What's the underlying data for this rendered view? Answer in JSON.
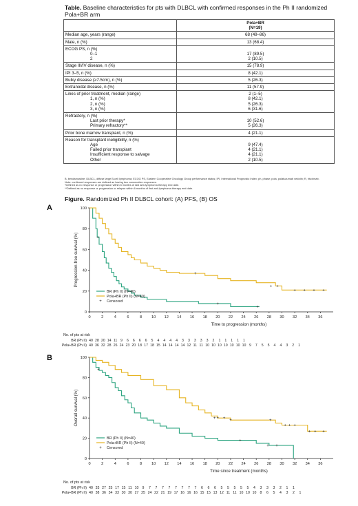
{
  "table": {
    "title_bold": "Table.",
    "title_rest": " Baseline characteristics for pts with DLBCL with confirmed responses in the Ph II randomized Pola+BR arm",
    "col_header_1": "Pola+BR",
    "col_header_2": "(N=19)",
    "rows": {
      "age": {
        "label": "Median age, years (range)",
        "value": "68 (49–86)"
      },
      "male": {
        "label": "Male, n (%)",
        "value": "13 (68.4)"
      },
      "ecog": {
        "label": "ECOG PS, n (%)",
        "sub1": "0–1",
        "sub2": "2",
        "v1": "17 (89.5)",
        "v2": "2 (10.5)"
      },
      "stage": {
        "label": "Stage III/IV disease, n (%)",
        "value": "15 (78.9)"
      },
      "ipi": {
        "label": "IPI 3–5, n (%)",
        "value": "8 (42.1)"
      },
      "bulky": {
        "label": "Bulky disease (≥7.5cm), n (%)",
        "value": "5 (26.3)"
      },
      "extranodal": {
        "label": "Extranodal disease, n (%)",
        "value": "11 (57.9)"
      },
      "lines": {
        "label": "Lines of prior treatment, median (range)",
        "sub1": "1, n (%)",
        "sub2": "2, n (%)",
        "sub3": "3, n (%)",
        "v0": "2 (1–5)",
        "v1": "8 (42.1)",
        "v2": "5 (26.3)",
        "v3": "6 (31.6)"
      },
      "refractory": {
        "label": "Refractory, n (%)",
        "sub1": "Last prior therapy*",
        "sub2": "Primary refractory**",
        "v1": "10 (52.6)",
        "v2": "5 (26.3)"
      },
      "bmt": {
        "label": "Prior bone marrow transplant, n (%)",
        "value": "4 (21.1)"
      },
      "reason": {
        "label": "Reason for transplant ineligibility, n (%)",
        "sub1": "Age",
        "sub2": "Failed prior transplant",
        "sub3": "Insufficient response to salvage",
        "sub4": "Other",
        "v1": "9 (47.4)",
        "v2": "4 (21.1)",
        "v3": "4 (21.1)",
        "v4": "2 (10.5)"
      }
    },
    "footnote_1": "B, bendamustine; DLBCL, diffuse large B-cell lymphoma; ECOG PS, Eastern Cooperative Oncology Group performance status; IPI, International Prognostic Index; ph, phase; pola, polatuzumab vedotin; R, rituximab.",
    "footnote_2": "Note: confirmed responses are defined as having two consecutive responses.",
    "footnote_3": "*Defined as no response or progression within 6 months of last anti-lymphoma therapy end date.",
    "footnote_4": "**Defined as no response or progression or relapse within 6 months of first anti-lymphoma therapy end date."
  },
  "figure": {
    "title_bold": "Figure.",
    "title_rest": " Randomized Ph II DLBCL cohort: (A) PFS, (B) OS",
    "panel_a": "A",
    "panel_b": "B"
  },
  "chart_data": [
    {
      "type": "line",
      "title": "",
      "xlabel": "Time to progression (months)",
      "ylabel": "Progression-free survival (%)",
      "xlim": [
        0,
        38
      ],
      "ylim": [
        0,
        100
      ],
      "xticks": [
        0,
        2,
        4,
        6,
        8,
        10,
        12,
        14,
        16,
        18,
        20,
        22,
        24,
        26,
        28,
        30,
        32,
        34,
        36
      ],
      "yticks": [
        0,
        20,
        40,
        60,
        80,
        100
      ],
      "colors": {
        "BR (Ph II)": "#2aa37f",
        "Pola+BR (Ph II)": "#e6b422"
      },
      "legend": [
        "BR (Ph II) (N=40)",
        "Pola+BR (Ph II) (N=40)",
        "Censored"
      ],
      "series": [
        {
          "name": "BR (Ph II)",
          "x": [
            0,
            0.5,
            1,
            1.2,
            1.5,
            2,
            2.3,
            2.6,
            3,
            3.4,
            3.8,
            4.2,
            4.6,
            5,
            5.4,
            6,
            6.5,
            7,
            8,
            9,
            10,
            12,
            14,
            16,
            17,
            20,
            22,
            26,
            26.5
          ],
          "y": [
            100,
            90,
            80,
            72,
            65,
            58,
            52,
            47,
            42,
            38,
            34,
            30,
            27,
            24,
            22,
            20,
            18,
            16,
            14,
            12,
            12,
            10,
            10,
            10,
            8,
            8,
            5,
            5,
            5
          ]
        },
        {
          "name": "Pola+BR (Ph II)",
          "x": [
            0,
            1,
            1.5,
            2,
            2.5,
            3,
            3.5,
            4,
            4.5,
            5,
            6,
            6.5,
            7,
            8,
            9,
            10,
            11,
            12,
            14,
            16,
            18,
            20,
            22,
            26,
            28,
            29,
            30,
            32,
            36,
            37
          ],
          "y": [
            100,
            95,
            90,
            85,
            80,
            75,
            70,
            66,
            62,
            58,
            55,
            52,
            50,
            47,
            44,
            42,
            40,
            38,
            37,
            37,
            35,
            32,
            30,
            28,
            28,
            25,
            21,
            21,
            21,
            21
          ]
        }
      ],
      "censored": {
        "BR (Ph II)": [
          [
            1.3,
            72
          ],
          [
            20,
            8
          ],
          [
            26.2,
            5
          ]
        ],
        "Pola+BR (Ph II)": [
          [
            16.5,
            37
          ],
          [
            28.3,
            25
          ],
          [
            29.3,
            25
          ],
          [
            32,
            21
          ],
          [
            33.5,
            21
          ],
          [
            35,
            21
          ],
          [
            36.5,
            21
          ]
        ]
      },
      "risk_table": {
        "heading": "No. of pts at risk",
        "rows": [
          {
            "name": "BR (Ph II)",
            "values": [
              "40",
              "28",
              "20",
              "14",
              "11",
              "9",
              "6",
              "6",
              "6",
              "6",
              "5",
              "4",
              "4",
              "4",
              "4",
              "3",
              "3",
              "3",
              "3",
              "3",
              "2",
              "1",
              "1",
              "1",
              "1",
              "1"
            ]
          },
          {
            "name": "Pola+BR (Ph II)",
            "values": [
              "40",
              "36",
              "32",
              "28",
              "26",
              "24",
              "23",
              "20",
              "18",
              "17",
              "18",
              "15",
              "14",
              "14",
              "14",
              "14",
              "12",
              "11",
              "11",
              "10",
              "10",
              "10",
              "10",
              "10",
              "10",
              "10",
              "9",
              "7",
              "5",
              "5",
              "4",
              "4",
              "3",
              "2",
              "1"
            ]
          }
        ]
      }
    },
    {
      "type": "line",
      "title": "",
      "xlabel": "Time since treatment (months)",
      "ylabel": "Overall survival (%)",
      "xlim": [
        0,
        38
      ],
      "ylim": [
        0,
        100
      ],
      "xticks": [
        0,
        2,
        4,
        6,
        8,
        10,
        12,
        14,
        16,
        18,
        20,
        22,
        24,
        26,
        28,
        30,
        32,
        34,
        36
      ],
      "yticks": [
        0,
        20,
        40,
        60,
        80,
        100
      ],
      "colors": {
        "BR (Ph II)": "#2aa37f",
        "Pola+BR (Ph II)": "#e6b422"
      },
      "legend": [
        "BR (Ph II) (N=40)",
        "Pola+BR (Ph II) (N=40)",
        "Censored"
      ],
      "series": [
        {
          "name": "BR (Ph II)",
          "x": [
            0,
            0.5,
            1,
            1.5,
            2,
            2.5,
            3,
            3.5,
            4,
            4.5,
            5,
            5.5,
            6,
            6.5,
            7,
            8,
            9,
            10,
            11,
            12,
            14,
            16,
            18,
            20,
            24,
            26,
            28,
            30,
            31.5,
            31.8
          ],
          "y": [
            100,
            95,
            90,
            87,
            85,
            82,
            80,
            75,
            70,
            67,
            62,
            58,
            55,
            50,
            45,
            40,
            38,
            35,
            32,
            30,
            25,
            22,
            20,
            18,
            18,
            15,
            13,
            13,
            13,
            0
          ]
        },
        {
          "name": "Pola+BR (Ph II)",
          "x": [
            0,
            1,
            2,
            3,
            4,
            5,
            6,
            8,
            10,
            12,
            14,
            15,
            16,
            17,
            18,
            19,
            20,
            22,
            26,
            28,
            29,
            30,
            32,
            34,
            36,
            37
          ],
          "y": [
            100,
            97,
            95,
            92,
            88,
            85,
            82,
            78,
            72,
            68,
            60,
            55,
            52,
            48,
            45,
            42,
            40,
            38,
            38,
            38,
            35,
            33,
            33,
            27,
            27,
            27
          ]
        }
      ],
      "censored": {
        "BR (Ph II)": [
          [
            1.4,
            88
          ],
          [
            23.5,
            18
          ],
          [
            27.8,
            13
          ],
          [
            29.2,
            13
          ]
        ],
        "Pola+BR (Ph II)": [
          [
            19.5,
            40
          ],
          [
            20,
            40
          ],
          [
            21,
            40
          ],
          [
            22,
            38
          ],
          [
            28.2,
            38
          ],
          [
            30.5,
            33
          ],
          [
            31.2,
            33
          ],
          [
            32,
            33
          ],
          [
            34.3,
            27
          ],
          [
            35.2,
            27
          ],
          [
            36.5,
            27
          ]
        ]
      },
      "risk_table": {
        "heading": "No. of pts at risk",
        "rows": [
          {
            "name": "BR (Ph II)",
            "values": [
              "40",
              "33",
              "27",
              "25",
              "17",
              "15",
              "11",
              "10",
              "9",
              "7",
              "7",
              "7",
              "7",
              "7",
              "7",
              "7",
              "7",
              "6",
              "6",
              "6",
              "5",
              "5",
              "5",
              "5",
              "5",
              "4",
              "3",
              "3",
              "3",
              "2",
              "1",
              "1"
            ]
          },
          {
            "name": "Pola+BR (Ph II)",
            "values": [
              "40",
              "38",
              "36",
              "34",
              "33",
              "30",
              "30",
              "27",
              "25",
              "24",
              "22",
              "21",
              "19",
              "17",
              "16",
              "16",
              "16",
              "15",
              "15",
              "13",
              "12",
              "11",
              "11",
              "10",
              "10",
              "10",
              "8",
              "6",
              "5",
              "4",
              "3",
              "2",
              "1"
            ]
          }
        ]
      }
    }
  ]
}
